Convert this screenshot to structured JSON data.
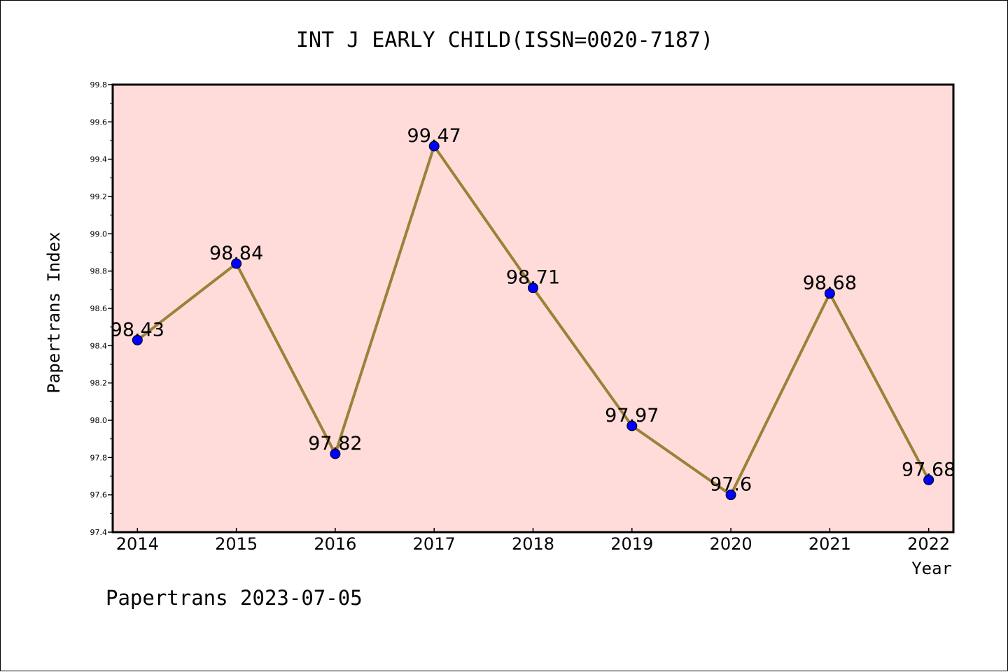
{
  "chart_data": {
    "type": "line",
    "title": "INT J EARLY CHILD(ISSN=0020-7187)",
    "xlabel": "Year",
    "ylabel": "Papertrans Index",
    "categories": [
      "2014",
      "2015",
      "2016",
      "2017",
      "2018",
      "2019",
      "2020",
      "2021",
      "2022"
    ],
    "values": [
      98.43,
      98.84,
      97.82,
      99.47,
      98.71,
      97.97,
      97.6,
      98.68,
      97.68
    ],
    "data_labels": [
      "98.43",
      "98.84",
      "97.82",
      "99.47",
      "98.71",
      "97.97",
      "97.6",
      "98.68",
      "97.68"
    ],
    "ylim": [
      97.4,
      99.8
    ],
    "yticks": [
      "97.4",
      "97.6",
      "97.8",
      "98.0",
      "98.2",
      "98.4",
      "98.6",
      "98.8",
      "99.0",
      "99.2",
      "99.4",
      "99.6",
      "99.8"
    ],
    "grid": false,
    "colors": {
      "plot_background": "#FFDCDA",
      "line": "#9A8238",
      "marker": "#0000FF"
    }
  },
  "footer": "Papertrans 2023-07-05"
}
